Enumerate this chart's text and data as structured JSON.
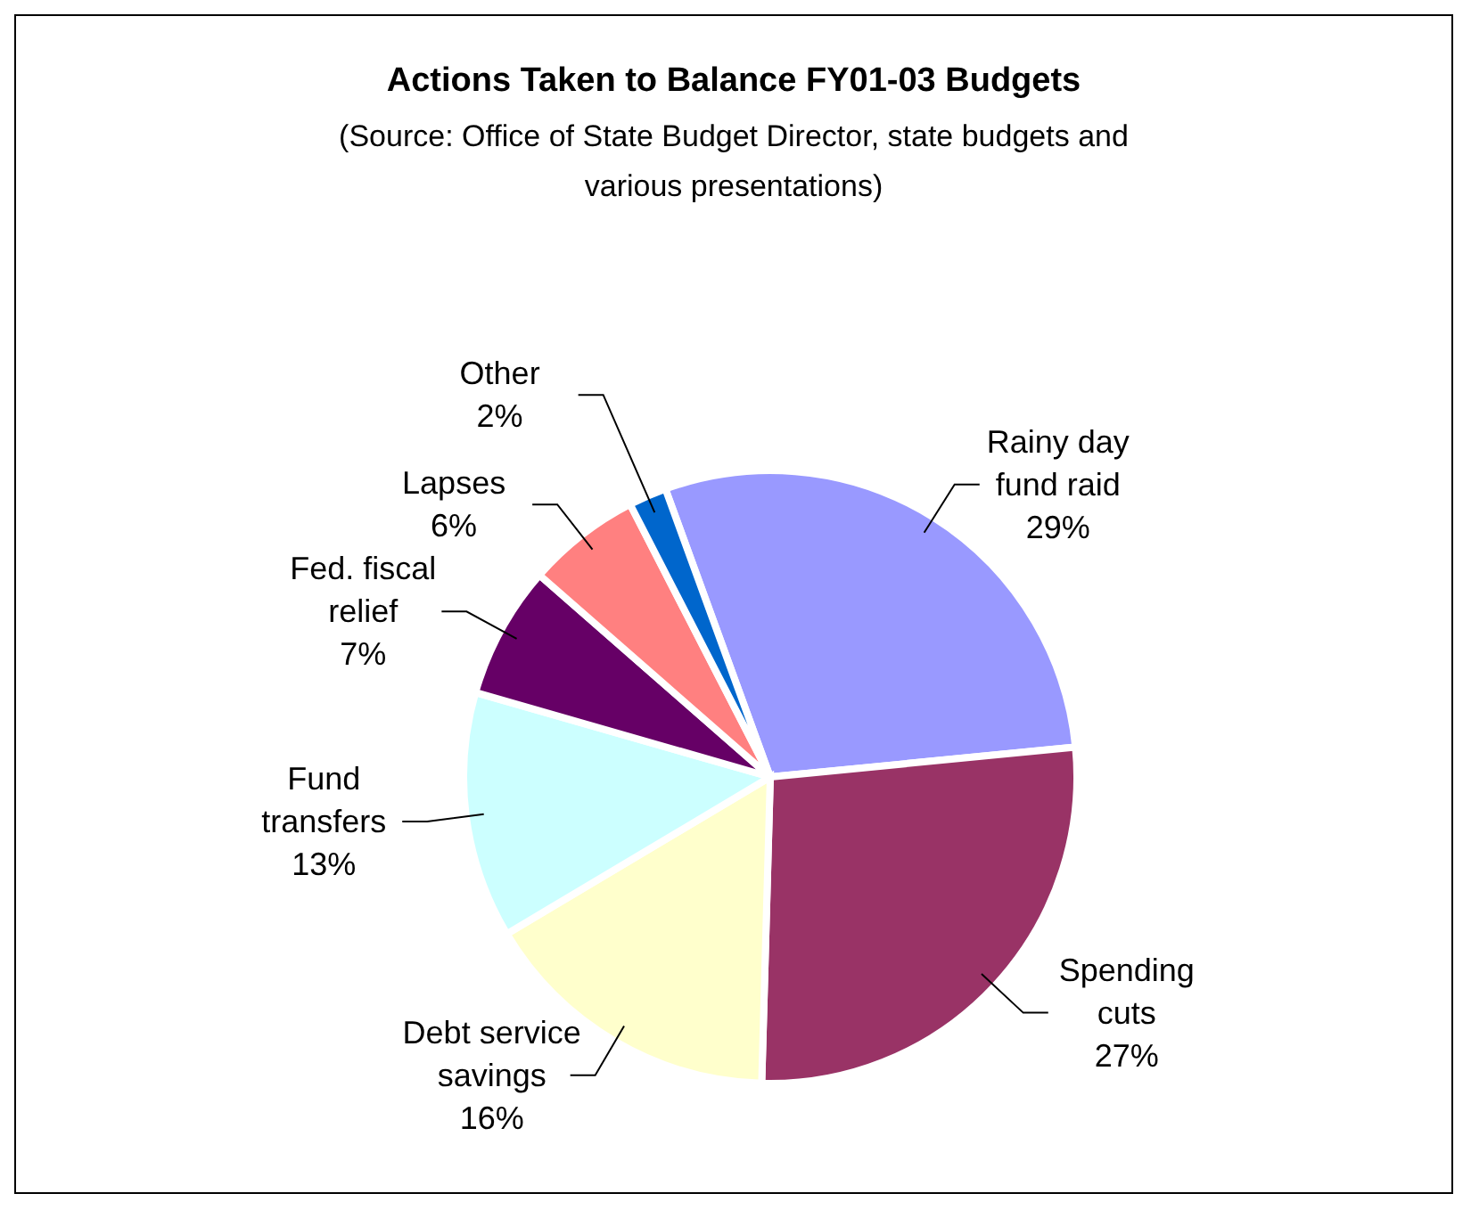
{
  "chart_data": {
    "type": "pie",
    "title": "Actions Taken to Balance FY01-03 Budgets",
    "subtitle": "(Source: Office of State Budget Director, state budgets and various presentations)",
    "categories": [
      "Rainy day fund raid",
      "Spending cuts",
      "Debt service savings",
      "Fund transfers",
      "Fed. fiscal relief",
      "Lapses",
      "Other"
    ],
    "values": [
      29,
      27,
      16,
      13,
      7,
      6,
      2
    ],
    "value_labels": [
      "29%",
      "27%",
      "16%",
      "13%",
      "7%",
      "6%",
      "2%"
    ],
    "colors": [
      "#9999ff",
      "#993366",
      "#ffffcc",
      "#ccffff",
      "#660066",
      "#ff8080",
      "#0066cc"
    ]
  }
}
